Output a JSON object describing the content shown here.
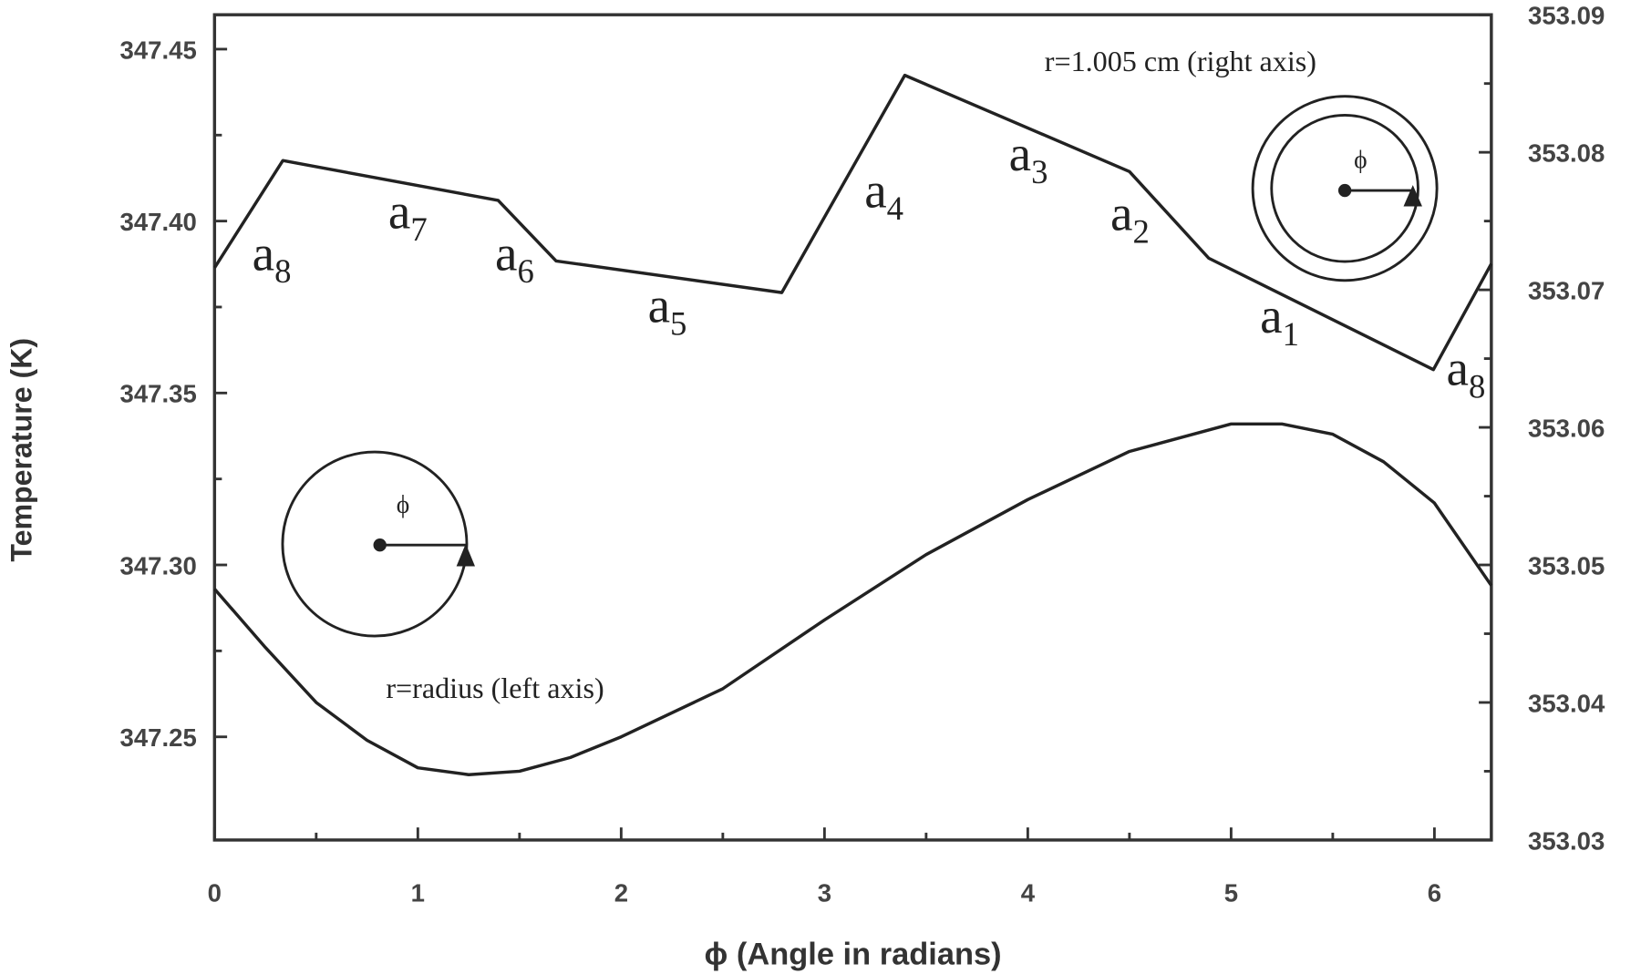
{
  "chart_data": {
    "type": "line",
    "xlabel": "ϕ (Angle in radians)",
    "ylabel": "Temperature (K)",
    "xlim": [
      0,
      6.28
    ],
    "xticks": [
      0,
      1,
      2,
      3,
      4,
      5,
      6
    ],
    "ylim": [
      347.22,
      347.46
    ],
    "yticks": [
      347.25,
      {
        "value": 347.3,
        "label": "347.30"
      },
      347.35,
      {
        "value": 347.4,
        "label": "347.40"
      },
      347.45
    ],
    "y2lim": [
      353.03,
      353.09
    ],
    "y2ticks": [
      353.03,
      353.04,
      353.05,
      353.06,
      353.07,
      353.08,
      353.09
    ],
    "series": [
      {
        "color": "#222222",
        "axis": "y",
        "x": [
          0,
          0.25,
          0.5,
          0.75,
          1.0,
          1.25,
          1.5,
          1.75,
          2.0,
          2.5,
          3.0,
          3.5,
          4.0,
          4.5,
          5.0,
          5.25,
          5.5,
          5.75,
          6.0,
          6.28
        ],
        "values": [
          347.293,
          347.276,
          347.26,
          347.249,
          347.241,
          347.239,
          347.24,
          347.244,
          347.25,
          347.264,
          347.284,
          347.303,
          347.319,
          347.333,
          347.341,
          347.341,
          347.338,
          347.33,
          347.318,
          347.294
        ]
      },
      {
        "color": "#222222",
        "axis": "y2",
        "x": [
          0,
          0.336,
          1.395,
          1.68,
          2.79,
          3.395,
          4.5,
          4.89,
          5.995,
          6.28
        ],
        "values": [
          353.0716,
          353.0794,
          353.0765,
          353.0721,
          353.0698,
          353.0856,
          353.0786,
          353.0723,
          353.0642,
          353.0719
        ]
      }
    ],
    "annotations": [
      {
        "text": "a",
        "sub": "8"
      },
      {
        "text": "a",
        "sub": "7"
      },
      {
        "text": "a",
        "sub": "6"
      },
      {
        "text": "a",
        "sub": "5"
      },
      {
        "text": "a",
        "sub": "4"
      },
      {
        "text": "a",
        "sub": "3"
      },
      {
        "text": "a",
        "sub": "2"
      },
      {
        "text": "a",
        "sub": "1"
      },
      {
        "text": "a",
        "sub": "8"
      }
    ],
    "notes": [
      "r=1.005 cm (right axis)",
      "r=radius (left axis)"
    ],
    "inset_labels": [
      "ϕ",
      "ϕ"
    ]
  }
}
